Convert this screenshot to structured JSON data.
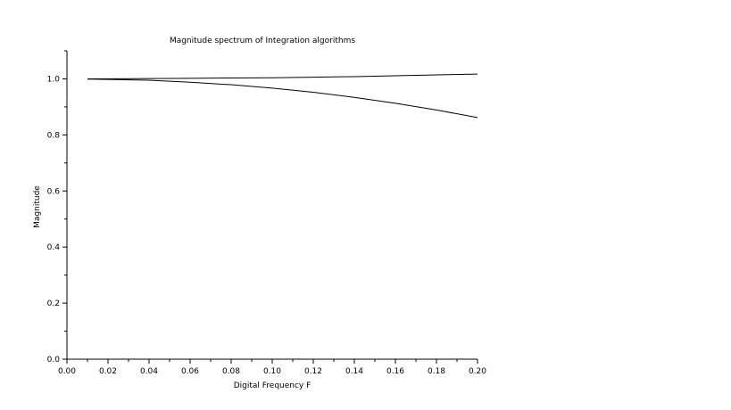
{
  "chart_data": {
    "type": "line",
    "title": "Magnitude spectrum of Integration algorithms",
    "xlabel": "Digital Frequency F",
    "ylabel": "Magnitude",
    "xlim": [
      0.0,
      0.2
    ],
    "ylim": [
      0.0,
      1.1
    ],
    "x_ticks": [
      "0.00",
      "0.02",
      "0.04",
      "0.06",
      "0.08",
      "0.10",
      "0.12",
      "0.14",
      "0.16",
      "0.18",
      "0.20"
    ],
    "y_ticks": [
      "0.0",
      "0.2",
      "0.4",
      "0.6",
      "0.8",
      "1.0"
    ],
    "grid": false,
    "series": [
      {
        "x": [
          0.01,
          0.02,
          0.04,
          0.06,
          0.08,
          0.1,
          0.12,
          0.14,
          0.16,
          0.18,
          0.2
        ],
        "y": [
          1.0,
          1.0,
          1.001,
          1.002,
          1.003,
          1.004,
          1.006,
          1.008,
          1.011,
          1.014,
          1.017
        ]
      },
      {
        "x": [
          0.01,
          0.02,
          0.04,
          0.06,
          0.08,
          0.1,
          0.12,
          0.14,
          0.16,
          0.18,
          0.2
        ],
        "y": [
          0.999,
          0.998,
          0.995,
          0.988,
          0.979,
          0.967,
          0.952,
          0.934,
          0.913,
          0.889,
          0.862
        ]
      }
    ]
  }
}
